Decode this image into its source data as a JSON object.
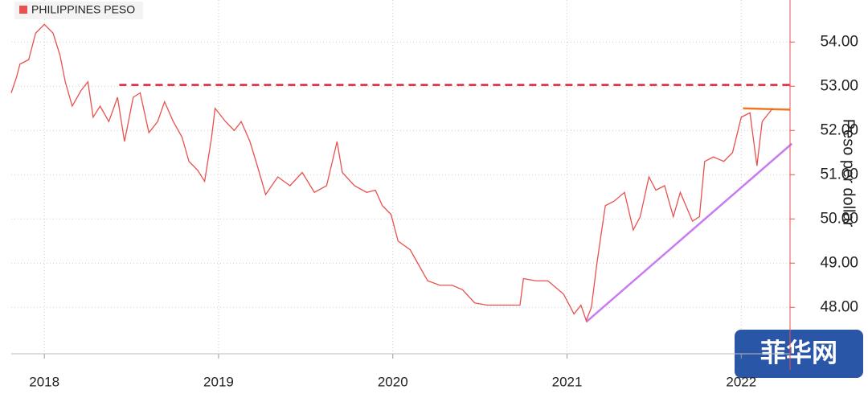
{
  "chart_data": {
    "type": "line",
    "x": [
      2017.81,
      2017.84,
      2017.86,
      2017.91,
      2017.95,
      2018.0,
      2018.05,
      2018.09,
      2018.12,
      2018.16,
      2018.21,
      2018.25,
      2018.28,
      2018.32,
      2018.37,
      2018.42,
      2018.46,
      2018.51,
      2018.55,
      2018.6,
      2018.65,
      2018.69,
      2018.74,
      2018.79,
      2018.83,
      2018.88,
      2018.92,
      2018.96,
      2018.98,
      2019.04,
      2019.09,
      2019.13,
      2019.18,
      2019.23,
      2019.27,
      2019.34,
      2019.41,
      2019.48,
      2019.55,
      2019.62,
      2019.68,
      2019.71,
      2019.78,
      2019.85,
      2019.9,
      2019.94,
      2019.99,
      2020.03,
      2020.1,
      2020.15,
      2020.2,
      2020.27,
      2020.34,
      2020.4,
      2020.47,
      2020.54,
      2020.61,
      2020.73,
      2020.75,
      2020.82,
      2020.89,
      2020.98,
      2021.04,
      2021.08,
      2021.11,
      2021.14,
      2021.17,
      2021.19,
      2021.22,
      2021.27,
      2021.33,
      2021.38,
      2021.42,
      2021.47,
      2021.51,
      2021.56,
      2021.61,
      2021.65,
      2021.72,
      2021.76,
      2021.79,
      2021.84,
      2021.9,
      2021.95,
      2022.0,
      2022.05,
      2022.09,
      2022.12,
      2022.16,
      2022.18
    ],
    "series": [
      {
        "name": "PHILIPPINES PESO",
        "color": "#e8514f",
        "values": [
          52.85,
          53.2,
          53.5,
          53.6,
          54.2,
          54.4,
          54.2,
          53.7,
          53.1,
          52.55,
          52.9,
          53.1,
          52.3,
          52.55,
          52.2,
          52.75,
          51.75,
          52.75,
          52.85,
          51.95,
          52.2,
          52.65,
          52.2,
          51.85,
          51.3,
          51.1,
          50.85,
          51.85,
          52.5,
          52.2,
          52.0,
          52.2,
          51.75,
          51.1,
          50.55,
          50.95,
          50.75,
          51.05,
          50.6,
          50.75,
          51.75,
          51.05,
          50.75,
          50.6,
          50.65,
          50.3,
          50.1,
          49.5,
          49.3,
          48.95,
          48.6,
          48.5,
          48.5,
          48.4,
          48.1,
          48.05,
          48.05,
          48.05,
          48.65,
          48.6,
          48.6,
          48.3,
          47.85,
          48.05,
          47.7,
          48.0,
          48.95,
          49.5,
          50.3,
          50.4,
          50.6,
          49.75,
          50.05,
          50.95,
          50.65,
          50.75,
          50.05,
          50.6,
          49.95,
          50.05,
          51.3,
          51.4,
          51.3,
          51.5,
          52.3,
          52.4,
          51.2,
          52.2,
          52.4,
          52.5
        ]
      }
    ],
    "reference_lines": [
      {
        "color": "#e0203c",
        "dashed": true,
        "x": [
          2018.43,
          2022.28
        ],
        "values": [
          53.03,
          53.03
        ]
      },
      {
        "color": "#f07820",
        "dashed": false,
        "x": [
          2022.01,
          2022.28
        ],
        "values": [
          52.5,
          52.47
        ]
      },
      {
        "color": "#c77cf0",
        "dashed": false,
        "x": [
          2021.11,
          2022.29
        ],
        "values": [
          47.67,
          51.7
        ]
      }
    ],
    "xlim": [
      2017.81,
      2022.28
    ],
    "xticks": [
      2018,
      2019,
      2020,
      2021,
      2022
    ],
    "ylim": [
      46.95,
      54.95
    ],
    "yticks": [
      {
        "value": 48,
        "label": "48.00"
      },
      {
        "value": 49,
        "label": "49.00"
      },
      {
        "value": 50,
        "label": "50.00"
      },
      {
        "value": 51,
        "label": "51.00"
      },
      {
        "value": 52,
        "label": "52.00"
      },
      {
        "value": 53,
        "label": "53.00"
      },
      {
        "value": 54,
        "label": "54.00"
      }
    ],
    "y_label": "Peso per dollar",
    "grid": true,
    "legend": "top-left",
    "watermark": "菲华网"
  }
}
